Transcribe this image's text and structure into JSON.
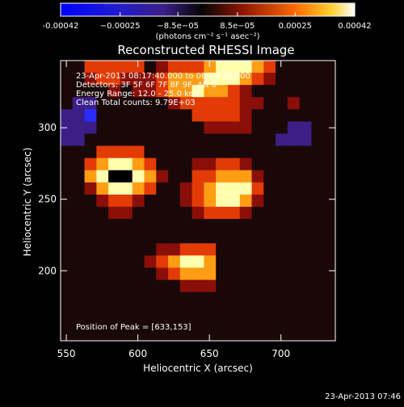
{
  "chart_data": {
    "type": "heatmap",
    "title": "Reconstructed RHESSI Image",
    "xlabel": "Heliocentric X (arcsec)",
    "ylabel": "Heliocentric Y (arcsec)",
    "xlim": [
      546,
      738
    ],
    "ylim": [
      151,
      347
    ],
    "xticks": [
      550,
      600,
      650,
      700
    ],
    "yticks": [
      200,
      250,
      300
    ],
    "xtick_labels": [
      "550",
      "600",
      "650",
      "700"
    ],
    "ytick_labels": [
      "200",
      "250",
      "300"
    ],
    "colorbar": {
      "range": [
        -0.00042,
        0.00042
      ],
      "ticks": [
        -0.00042,
        -0.00025,
        -8.5e-05,
        8.5e-05,
        0.00025,
        0.00042
      ],
      "tick_labels": [
        "-0.00042",
        "−0.00025",
        "−8.5e−05",
        "8.5e−05",
        "0.00025",
        "0.00042"
      ],
      "unit_label": "(photons cm⁻² s⁻¹ asec⁻²)"
    },
    "colormap": [
      "#2a2cff",
      "#3b1f86",
      "#1a0808",
      "#8a0f08",
      "#e33b06",
      "#ff9d14",
      "#ffffb0"
    ],
    "image_rows": [
      "22444442344456665422222",
      "22344333455566654322222",
      "22223233455655432222222",
      "21122222234444433223222",
      "11022222222444432222222",
      "11122222222233332221122",
      "11222222222222222211122",
      "22244442222222222222222",
      "22456654222334432222222",
      "22567765322445553222222",
      "22356654223456664222222",
      "22234432223456653222222",
      "22223322222344432222222",
      "22222222222222222222222",
      "22222222222222222222222",
      "22222222334442222222222",
      "22222223456652222222222",
      "22222222345552222222222",
      "22222222223332222222222",
      "22222222222222222222222",
      "22222222222222222222222",
      "22222222222222222222222",
      "22222222222222222222222"
    ],
    "annotations": [
      "23-Apr-2013 08:17:40.000 to 08:20:08.000",
      "Detectors: 3F 5F 6F 7F 8F 9F, Att 0",
      "Energy Range: 12.0 - 25.0 keV",
      "Clean     Total counts: 9.79E+03"
    ],
    "peak_label": "Position of Peak = [633,153]"
  },
  "footer": {
    "timestamp": "23-Apr-2013 07:46"
  }
}
